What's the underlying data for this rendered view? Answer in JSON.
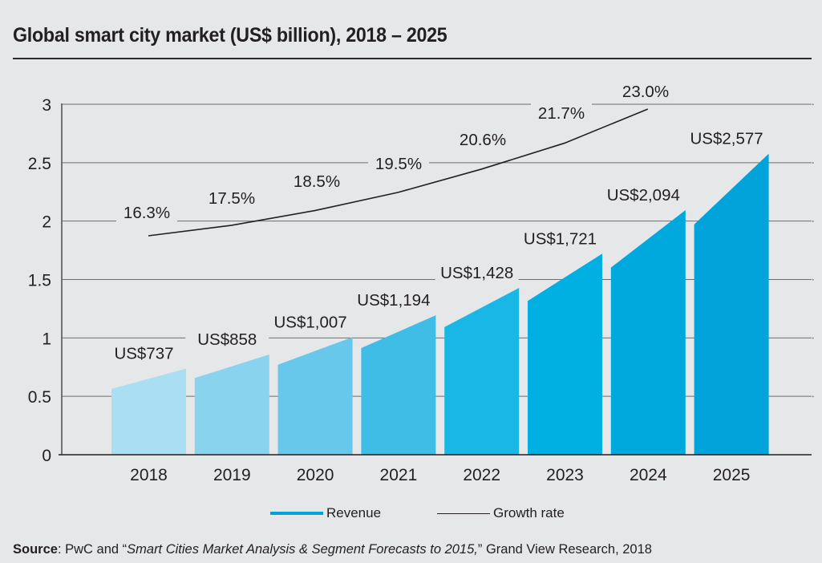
{
  "title": "Global smart city market (US$ billion), 2018 – 2025",
  "chart_data": {
    "type": "bar",
    "title": "Global smart city market (US$ billion), 2018 – 2025",
    "xlabel": "",
    "ylabel": "",
    "ylim": [
      0,
      3
    ],
    "yticks": [
      "0",
      "0.5",
      "1",
      "1.5",
      "2",
      "2.5",
      "3"
    ],
    "grid": true,
    "categories": [
      "2018",
      "2019",
      "2020",
      "2021",
      "2022",
      "2023",
      "2024",
      "2025"
    ],
    "series": [
      {
        "name": "Revenue",
        "type": "bar",
        "values": [
          0.737,
          0.858,
          1.007,
          1.194,
          1.428,
          1.721,
          2.094,
          2.577
        ],
        "labels": [
          "US$737",
          "US$858",
          "US$1,007",
          "US$1,194",
          "US$1,428",
          "US$1,721",
          "US$2,094",
          "US$2,577"
        ],
        "colors": [
          "#aadef2",
          "#8ad3ef",
          "#67c8eb",
          "#40bde7",
          "#18b7e5",
          "#00b0e2",
          "#00a9dd",
          "#00a3da"
        ]
      },
      {
        "name": "Growth rate",
        "type": "line",
        "values": [
          16.3,
          17.5,
          18.5,
          19.5,
          20.6,
          21.7,
          23.0
        ],
        "labels": [
          "16.3%",
          "17.5%",
          "18.5%",
          "19.5%",
          "20.6%",
          "21.7%",
          "23.0%"
        ],
        "color": "#231f20"
      }
    ],
    "legend": {
      "position": "bottom-center",
      "entries": [
        "Revenue",
        "Growth rate"
      ]
    }
  },
  "legend": {
    "revenue_label": "Revenue",
    "growth_label": "Growth rate"
  },
  "source": {
    "label": "Source",
    "prefix": ": PwC and “",
    "italic": "Smart Cities Market Analysis & Segment Forecasts to 2015,",
    "suffix": "” Grand View Research, 2018"
  }
}
